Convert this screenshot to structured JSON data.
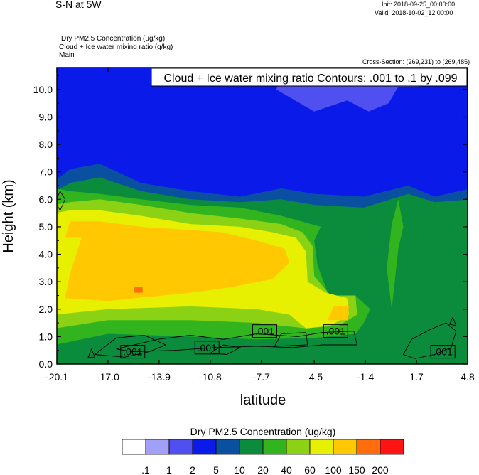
{
  "header": {
    "plot_title": "S-N at 5W",
    "init_label": "Init: 2018-09-25_00:00:00",
    "valid_label": "Valid: 2018-10-02_12:00:00",
    "field_line1": "Dry PM2.5 Concentration   (ug/kg)",
    "field_line2": "Cloud + Ice water mixing ratio   (g/kg)",
    "field_line3": "Main",
    "cross_section": "Cross-Section: (269,231) to (269,485)"
  },
  "chart_data": {
    "type": "heatmap",
    "title": "Cloud + Ice water mixing ratio Contours: .001 to .1 by .099",
    "xlabel": "latitude",
    "ylabel": "Height (km)",
    "xlim": [
      -20.1,
      4.8
    ],
    "ylim": [
      0,
      10.8
    ],
    "x_ticks": [
      "-20.1",
      "-17.0",
      "-13.9",
      "-10.8",
      "-7.7",
      "-4.5",
      "-1.4",
      "1.7",
      "4.8"
    ],
    "y_ticks": [
      "0.0",
      "1.0",
      "2.0",
      "3.0",
      "4.0",
      "5.0",
      "6.0",
      "7.0",
      "8.0",
      "9.0",
      "10.0"
    ],
    "contour_labels": [
      ".001",
      ".001",
      ".001",
      ".001",
      ".001"
    ],
    "colorbar": {
      "title": "Dry PM2.5 Concentration  (ug/kg)",
      "levels": [
        ".1",
        "1",
        "2",
        "5",
        "10",
        "20",
        "40",
        "60",
        "100",
        "150",
        "200"
      ],
      "colors": [
        "#ffffff",
        "#a0a0f8",
        "#5050f0",
        "#0a1ae8",
        "#0a50a0",
        "#0a8c3c",
        "#32b41e",
        "#8cd214",
        "#e6f000",
        "#ffc800",
        "#ff6e0a",
        "#ff1414"
      ]
    }
  }
}
